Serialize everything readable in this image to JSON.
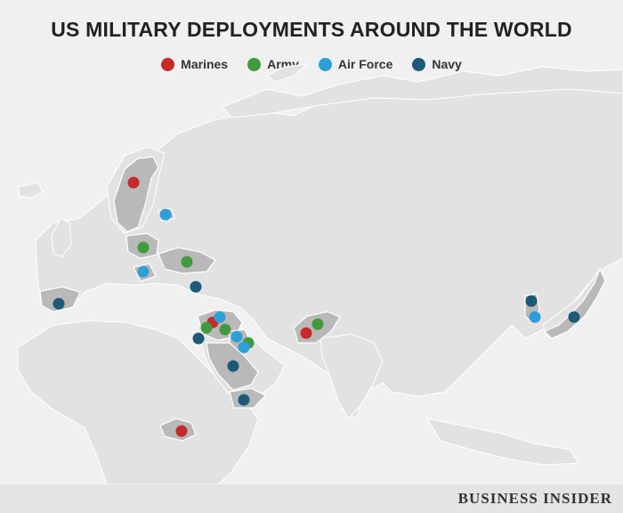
{
  "title": "US MILITARY DEPLOYMENTS AROUND THE WORLD",
  "legend": [
    {
      "label": "Marines",
      "color": "#c62a2a"
    },
    {
      "label": "Army",
      "color": "#3f9b3e"
    },
    {
      "label": "Air Force",
      "color": "#2f9fd8"
    },
    {
      "label": "Navy",
      "color": "#1c5a78"
    }
  ],
  "colors": {
    "background": "#f0f0f0",
    "land": "#e2e2e2",
    "highlight_land": "#b9b9b9",
    "border": "#ffffff"
  },
  "brand": "BUSINESS INSIDER"
}
